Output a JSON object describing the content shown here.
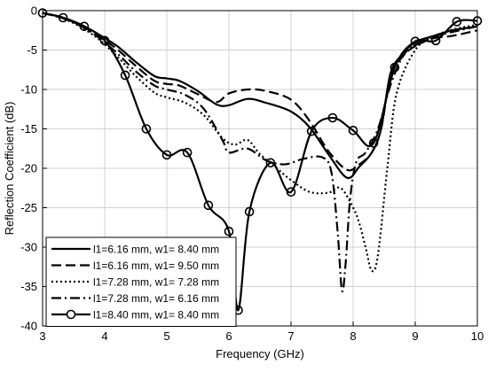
{
  "chart_data": {
    "type": "line",
    "title": "",
    "xlabel": "Frequency (GHz)",
    "ylabel": "Reflection Coefficient (dB)",
    "xlim": [
      3,
      10
    ],
    "ylim": [
      -40,
      0
    ],
    "xticks": [
      3,
      4,
      5,
      6,
      7,
      8,
      9,
      10
    ],
    "yticks": [
      0,
      -5,
      -10,
      -15,
      -20,
      -25,
      -30,
      -35,
      -40
    ],
    "grid": true,
    "legend_position": "bottom-left",
    "series": [
      {
        "name": "l1=6.16 mm, w1= 8.40 mm",
        "style": "solid",
        "marker": "none",
        "color": "#000000",
        "x": [
          3.0,
          3.3,
          3.6,
          3.9,
          4.2,
          4.5,
          4.8,
          5.0,
          5.2,
          5.5,
          5.8,
          6.0,
          6.3,
          6.6,
          7.0,
          7.3,
          7.6,
          7.9,
          8.1,
          8.3,
          8.45,
          8.6,
          8.8,
          9.0,
          9.3,
          9.6,
          10.0
        ],
        "y": [
          -0.3,
          -0.8,
          -1.7,
          -3.0,
          -4.5,
          -6.5,
          -8.3,
          -8.6,
          -8.9,
          -10.2,
          -11.9,
          -12.0,
          -11.2,
          -11.7,
          -12.8,
          -14.8,
          -18.2,
          -21.2,
          -19.8,
          -18.0,
          -15.0,
          -8.0,
          -5.5,
          -4.0,
          -3.2,
          -2.5,
          -2.0
        ]
      },
      {
        "name": "l1=6.16 mm, w1= 9.50 mm",
        "style": "dashed",
        "marker": "none",
        "color": "#000000",
        "x": [
          3.0,
          3.3,
          3.6,
          3.9,
          4.2,
          4.5,
          4.8,
          5.0,
          5.2,
          5.5,
          5.8,
          6.0,
          6.3,
          6.6,
          7.0,
          7.3,
          7.6,
          7.9,
          8.1,
          8.3,
          8.45,
          8.6,
          8.8,
          9.0,
          9.3,
          9.6,
          10.0
        ],
        "y": [
          -0.3,
          -0.9,
          -1.8,
          -3.2,
          -4.9,
          -7.0,
          -8.9,
          -9.3,
          -9.5,
          -10.6,
          -11.6,
          -10.5,
          -10.0,
          -10.2,
          -11.3,
          -14.0,
          -17.8,
          -20.2,
          -19.5,
          -18.0,
          -15.0,
          -8.5,
          -5.8,
          -4.5,
          -3.5,
          -3.2,
          -2.5
        ]
      },
      {
        "name": "l1=7.28 mm, w1= 7.28 mm",
        "style": "dotted",
        "marker": "none",
        "color": "#000000",
        "x": [
          3.0,
          3.3,
          3.6,
          3.9,
          4.2,
          4.5,
          4.8,
          5.0,
          5.3,
          5.6,
          5.9,
          6.1,
          6.3,
          6.5,
          6.8,
          7.0,
          7.3,
          7.6,
          7.8,
          8.0,
          8.1,
          8.2,
          8.3,
          8.4,
          8.55,
          8.7,
          9.0,
          9.3,
          9.6,
          10.0
        ],
        "y": [
          -0.3,
          -0.9,
          -2.0,
          -3.6,
          -5.8,
          -8.3,
          -10.4,
          -11.0,
          -11.7,
          -13.3,
          -16.2,
          -17.0,
          -16.4,
          -18.2,
          -20.2,
          -21.5,
          -23.0,
          -23.1,
          -22.5,
          -25.0,
          -27.0,
          -30.0,
          -33.0,
          -31.0,
          -20.0,
          -10.5,
          -5.0,
          -3.3,
          -2.4,
          -1.8
        ]
      },
      {
        "name": "l1=7.28 mm, w1= 6.16 mm",
        "style": "dashdot",
        "marker": "none",
        "color": "#000000",
        "x": [
          3.0,
          3.3,
          3.6,
          3.9,
          4.2,
          4.5,
          4.8,
          5.0,
          5.3,
          5.6,
          5.9,
          6.0,
          6.3,
          6.6,
          6.9,
          7.2,
          7.5,
          7.65,
          7.75,
          7.82,
          7.88,
          7.95,
          8.05,
          8.2,
          8.4,
          8.6,
          8.8,
          9.0,
          9.3,
          9.6,
          10.0
        ],
        "y": [
          -0.3,
          -0.9,
          -1.9,
          -3.4,
          -5.4,
          -7.7,
          -9.5,
          -10.0,
          -10.7,
          -12.5,
          -16.5,
          -18.0,
          -17.5,
          -19.0,
          -19.5,
          -18.8,
          -18.6,
          -20.5,
          -28.0,
          -35.5,
          -32.0,
          -24.0,
          -19.2,
          -18.0,
          -15.0,
          -9.5,
          -5.8,
          -4.3,
          -3.3,
          -2.7,
          -2.0
        ]
      },
      {
        "name": "l1=8.40 mm, w1= 8.40 mm",
        "style": "solid",
        "marker": "circle",
        "color": "#000000",
        "x": [
          3.0,
          3.33,
          3.67,
          4.0,
          4.33,
          4.67,
          5.0,
          5.33,
          5.67,
          6.0,
          6.15,
          6.33,
          6.67,
          7.0,
          7.33,
          7.67,
          8.0,
          8.33,
          8.67,
          9.0,
          9.33,
          9.67,
          10.0
        ],
        "y": [
          -0.3,
          -0.9,
          -2.0,
          -3.8,
          -8.2,
          -15.0,
          -18.3,
          -18.0,
          -24.7,
          -28.0,
          -38.0,
          -25.5,
          -19.3,
          -23.0,
          -15.3,
          -13.6,
          -15.2,
          -16.8,
          -7.2,
          -3.9,
          -3.8,
          -1.4,
          -1.3
        ]
      }
    ]
  }
}
